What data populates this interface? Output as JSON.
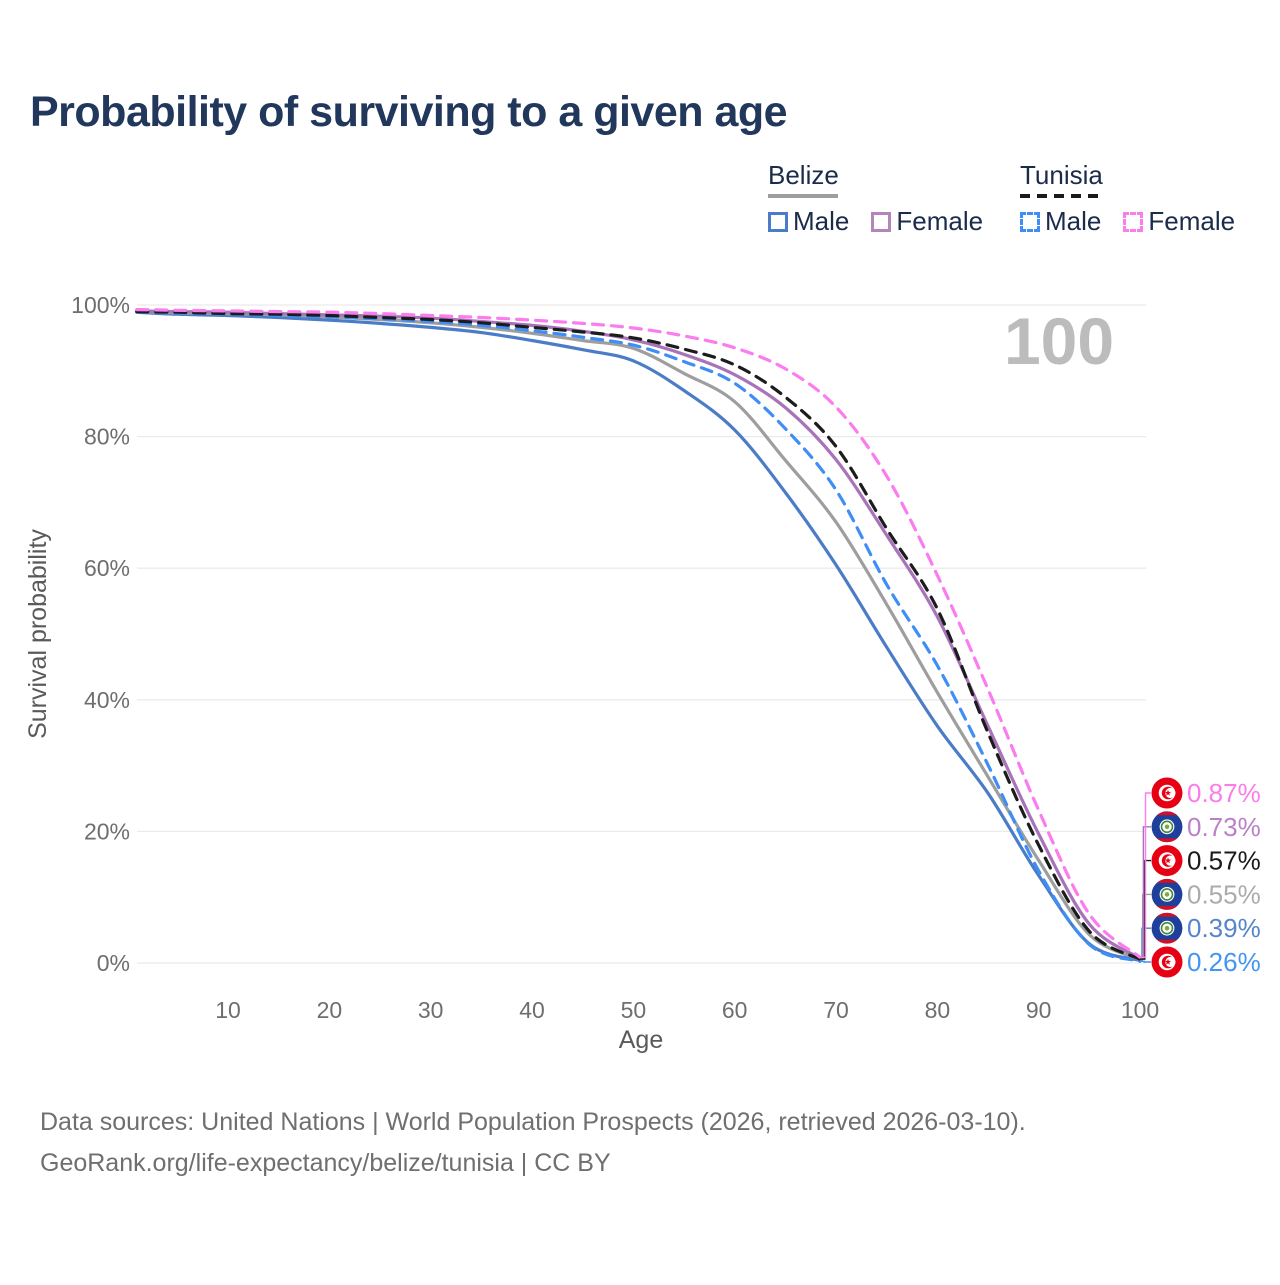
{
  "header": {
    "title": "Probability of surviving to a given age"
  },
  "legend": {
    "groups": [
      {
        "title": "Belize",
        "line_style": "solid",
        "line_color": "#9e9e9e",
        "items": [
          {
            "label": "Male",
            "swatch_style": "solid",
            "swatch_color": "#4a7cc7"
          },
          {
            "label": "Female",
            "swatch_style": "solid",
            "swatch_color": "#b584bc"
          }
        ]
      },
      {
        "title": "Tunisia",
        "line_style": "dashed",
        "line_color": "#1a1a1a",
        "items": [
          {
            "label": "Male",
            "swatch_style": "dashed",
            "swatch_color": "#3f8ef5"
          },
          {
            "label": "Female",
            "swatch_style": "dashed",
            "swatch_color": "#fa7de9"
          }
        ]
      }
    ]
  },
  "chart_data": {
    "type": "line",
    "title": "Probability of surviving to a given age",
    "xlabel": "Age",
    "ylabel": "Survival probability",
    "xlim": [
      1,
      100
    ],
    "ylim": [
      0,
      100
    ],
    "grid": "horizontal",
    "legend_position": "top-right",
    "age_watermark": "100",
    "x_ticks": [
      10,
      20,
      30,
      40,
      50,
      60,
      70,
      80,
      90,
      100
    ],
    "y_ticks": [
      {
        "value": 0,
        "label": "0%"
      },
      {
        "value": 20,
        "label": "20%"
      },
      {
        "value": 40,
        "label": "40%"
      },
      {
        "value": 60,
        "label": "60%"
      },
      {
        "value": 80,
        "label": "80%"
      },
      {
        "value": 100,
        "label": "100%"
      }
    ],
    "x": [
      1,
      5,
      10,
      15,
      20,
      25,
      30,
      35,
      40,
      45,
      50,
      55,
      60,
      65,
      70,
      75,
      80,
      85,
      90,
      95,
      100
    ],
    "series": [
      {
        "name": "Belize Male",
        "country": "Belize",
        "sex": "Male",
        "style": "solid",
        "color": "#4a7cc7",
        "flag": "belize",
        "end_label": {
          "text": "0.39%",
          "color": "#5585cb",
          "row": 4
        },
        "values": [
          98.9,
          98.6,
          98.4,
          98.1,
          97.7,
          97.2,
          96.6,
          95.8,
          94.6,
          93.2,
          91.5,
          87.0,
          81.0,
          71.5,
          60.5,
          48.0,
          36.0,
          25.8,
          13.3,
          2.9,
          0.39
        ]
      },
      {
        "name": "Belize",
        "country": "Belize",
        "sex": "Both",
        "style": "solid",
        "color": "#9e9e9e",
        "flag": "belize",
        "end_label": {
          "text": "0.55%",
          "color": "#ababab",
          "row": 3
        },
        "values": [
          99.0,
          98.8,
          98.7,
          98.5,
          98.2,
          97.8,
          97.3,
          96.6,
          95.7,
          94.6,
          93.4,
          89.6,
          85.3,
          76.4,
          67.0,
          54.5,
          41.1,
          28.3,
          15.6,
          4.3,
          0.55
        ]
      },
      {
        "name": "Belize Female",
        "country": "Belize",
        "sex": "Female",
        "style": "solid",
        "color": "#a873b8",
        "flag": "belize",
        "end_label": {
          "text": "0.73%",
          "color": "#bb80c7",
          "row": 1
        },
        "values": [
          99.1,
          99.0,
          98.9,
          98.7,
          98.5,
          98.3,
          98.0,
          97.5,
          96.9,
          96.0,
          94.7,
          92.5,
          89.4,
          84.4,
          76.5,
          65.0,
          52.6,
          36.0,
          19.6,
          5.9,
          0.73
        ]
      },
      {
        "name": "Tunisia Male",
        "country": "Tunisia",
        "sex": "Male",
        "style": "dashed",
        "color": "#3f8ef5",
        "flag": "tunisia",
        "end_label": {
          "text": "0.26%",
          "color": "#4495f2",
          "row": 5
        },
        "values": [
          99.0,
          98.8,
          98.6,
          98.4,
          98.2,
          97.9,
          97.5,
          96.9,
          96.1,
          95.1,
          93.9,
          91.4,
          88.1,
          81.2,
          71.9,
          57.5,
          45.2,
          30.1,
          14.0,
          2.8,
          0.26
        ]
      },
      {
        "name": "Tunisia",
        "country": "Tunisia",
        "sex": "Both",
        "style": "dashed",
        "color": "#1c1c1c",
        "flag": "tunisia",
        "end_label": {
          "text": "0.57%",
          "color": "#1a1a1a",
          "row": 2
        },
        "values": [
          99.0,
          98.9,
          98.7,
          98.6,
          98.4,
          98.1,
          97.8,
          97.3,
          96.6,
          95.9,
          95.0,
          93.3,
          90.9,
          86.0,
          78.5,
          66.0,
          53.8,
          35.0,
          17.9,
          4.8,
          0.57
        ]
      },
      {
        "name": "Tunisia Female",
        "country": "Tunisia",
        "sex": "Female",
        "style": "dashed",
        "color": "#fb7cee",
        "flag": "tunisia",
        "end_label": {
          "text": "0.87%",
          "color": "#fb7de9",
          "row": 0
        },
        "values": [
          99.3,
          99.2,
          99.1,
          99.0,
          98.9,
          98.7,
          98.4,
          98.1,
          97.7,
          97.2,
          96.5,
          95.3,
          93.5,
          90.3,
          84.5,
          74.0,
          58.9,
          41.6,
          23.2,
          7.4,
          0.87
        ]
      }
    ]
  },
  "footer": {
    "line1": "Data sources: United Nations | World Population Prospects (2026, retrieved 2026-03-10).",
    "line2": "GeoRank.org/life-expectancy/belize/tunisia | CC BY"
  }
}
